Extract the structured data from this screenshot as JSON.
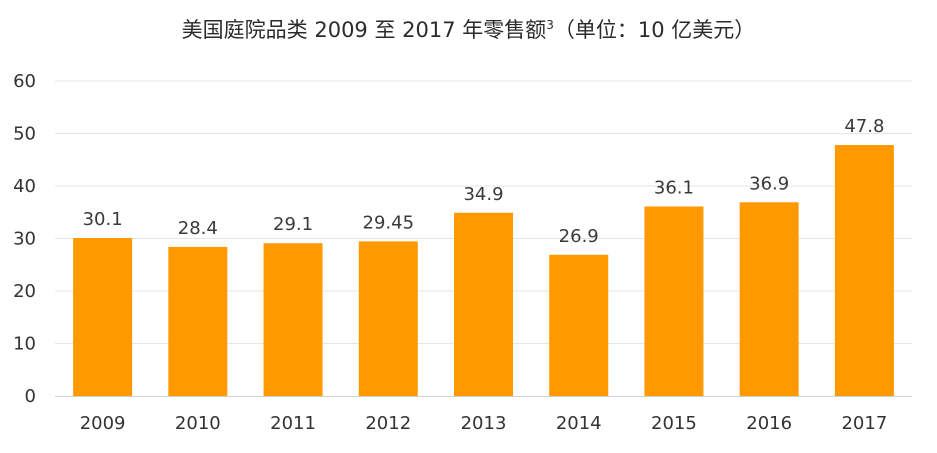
{
  "chart_data": {
    "type": "bar",
    "title": "美国庭院品类 2009 至 2017 年零售额",
    "title_superscript": "3",
    "title_suffix": "（单位：10 亿美元）",
    "categories": [
      "2009",
      "2010",
      "2011",
      "2012",
      "2013",
      "2014",
      "2015",
      "2016",
      "2017"
    ],
    "values": [
      30.1,
      28.4,
      29.1,
      29.45,
      34.9,
      26.9,
      36.1,
      36.9,
      47.8
    ],
    "value_labels": [
      "30.1",
      "28.4",
      "29.1",
      "29.45",
      "34.9",
      "26.9",
      "36.1",
      "36.9",
      "47.8"
    ],
    "ylim": [
      0,
      60
    ],
    "yticks": [
      0,
      10,
      20,
      30,
      40,
      50,
      60
    ],
    "grid": true,
    "legend": "none",
    "xlabel": "",
    "ylabel": "",
    "bar_color": "#FF9900",
    "grid_color": "#E6E6E6"
  }
}
